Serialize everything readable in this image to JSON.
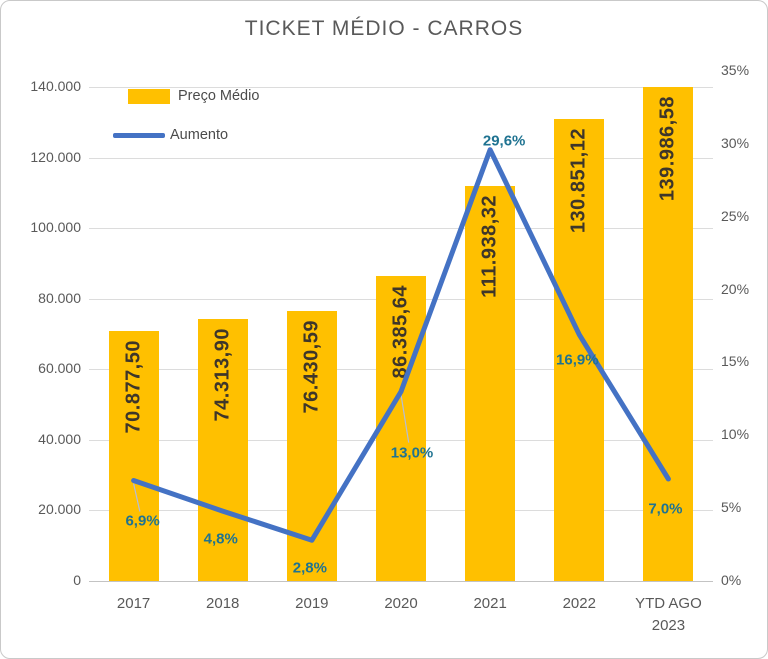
{
  "title": "TICKET MÉDIO - CARROS",
  "legend": [
    {
      "label": "Preço Médio",
      "marker": "bar-swatch",
      "color": "#ffc000"
    },
    {
      "label": "Aumento",
      "marker": "line-swatch",
      "color": "#4472c4"
    }
  ],
  "chart_data": {
    "type": "combo-bar-line",
    "title": "TICKET MÉDIO - CARROS",
    "categories": [
      "2017",
      "2018",
      "2019",
      "2020",
      "2021",
      "2022",
      "YTD AGO 2023"
    ],
    "series": [
      {
        "name": "Preço Médio",
        "type": "bar",
        "axis": "left",
        "color": "#ffc000",
        "values": [
          70877.5,
          74313.9,
          76430.59,
          86385.64,
          111938.32,
          130851.12,
          139986.58
        ],
        "labels": [
          "70.877,50",
          "74.313,90",
          "76.430,59",
          "86.385,64",
          "111.938,32",
          "130.851,12",
          "139.986,58"
        ]
      },
      {
        "name": "Aumento",
        "type": "line",
        "axis": "right",
        "color": "#4472c4",
        "values": [
          6.9,
          4.8,
          2.8,
          13.0,
          29.6,
          16.9,
          7.0
        ],
        "labels": [
          "6,9%",
          "4,8%",
          "2,8%",
          "13,0%",
          "29,6%",
          "16,9%",
          "7,0%"
        ],
        "label_offsets": [
          {
            "dx": 9,
            "dy": 41,
            "leader": true
          },
          {
            "dx": -2,
            "dy": 28,
            "leader": false
          },
          {
            "dx": -2,
            "dy": 28,
            "leader": false
          },
          {
            "dx": 11,
            "dy": 61,
            "leader": true
          },
          {
            "dx": 14,
            "dy": -9,
            "leader": false
          },
          {
            "dx": -2,
            "dy": 25,
            "leader": false
          },
          {
            "dx": -3,
            "dy": 30,
            "leader": false
          }
        ]
      }
    ],
    "left_axis": {
      "min": 0,
      "max": 140000,
      "step": 20000,
      "ticks": [
        "0",
        "20.000",
        "40.000",
        "60.000",
        "80.000",
        "100.000",
        "120.000",
        "140.000"
      ]
    },
    "right_axis": {
      "min": 0,
      "max": 35,
      "step": 5,
      "ticks": [
        "0%",
        "5%",
        "10%",
        "15%",
        "20%",
        "25%",
        "30%",
        "35%"
      ]
    },
    "grid": true,
    "legend_position": "top-left"
  },
  "colors": {
    "bar": "#ffc000",
    "line": "#4472c4",
    "bar_value_text": "#3e362a",
    "percent_label_text": "#1f7391",
    "axis_text": "#595959",
    "gridline": "#dcdcdc",
    "title_text": "#595959",
    "background": "#ffffff"
  }
}
